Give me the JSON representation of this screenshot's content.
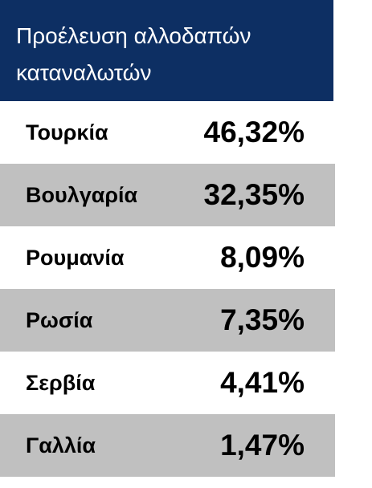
{
  "header": {
    "title_lines": [
      "Προέλευση αλλοδαπών",
      "καταναλωτών"
    ]
  },
  "table": {
    "rows": [
      [
        "Τουρκία",
        "46,32%"
      ],
      [
        "Βουλγαρία",
        "32,35%"
      ],
      [
        "Ρουμανία",
        "8,09%"
      ],
      [
        "Ρωσία",
        "7,35%"
      ],
      [
        "Σερβία",
        "4,41%"
      ],
      [
        "Γαλλία",
        "1,47%"
      ]
    ]
  }
}
